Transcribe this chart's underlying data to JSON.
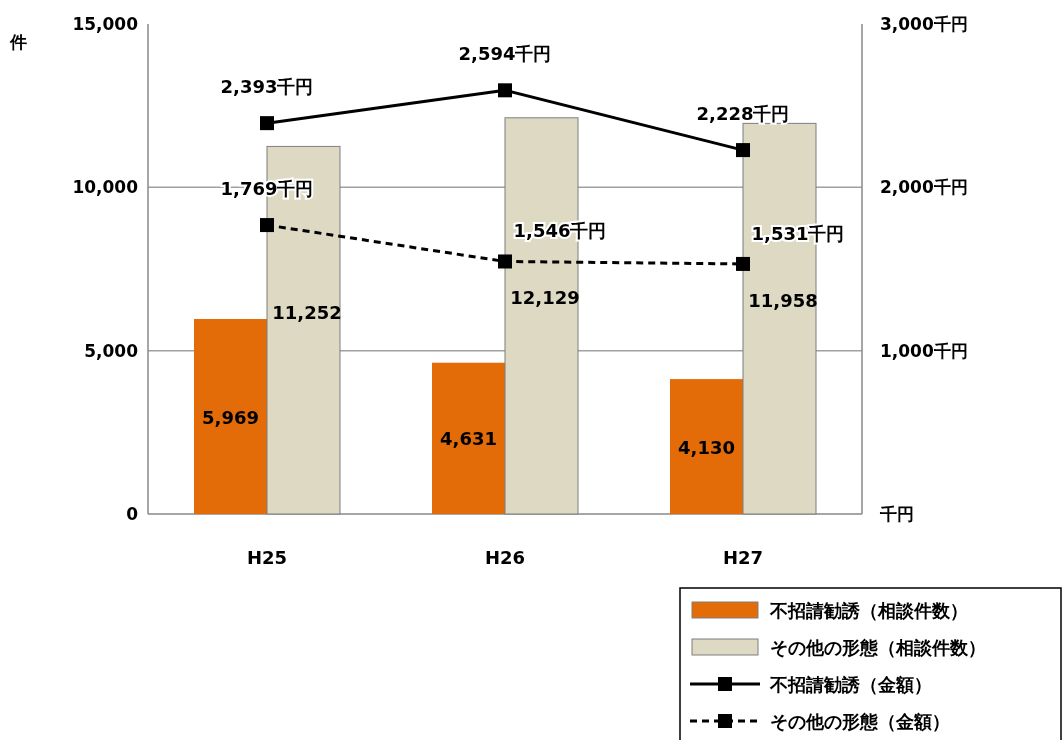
{
  "chart_data": {
    "type": "bar",
    "categories": [
      "H25",
      "H26",
      "H27"
    ],
    "ylabel": "件",
    "ylim": [
      0,
      15000
    ],
    "yticks": [
      0,
      {
        "value": 5000,
        "label": "5,000"
      },
      {
        "value": 10000,
        "label": "10,000"
      },
      {
        "value": 15000,
        "label": "15,000"
      }
    ],
    "y2lim": [
      0,
      3000
    ],
    "y2ticks": [
      {
        "value": 0,
        "label": "千円"
      },
      {
        "value": 1000,
        "label": "1,000千円"
      },
      {
        "value": 2000,
        "label": "2,000千円"
      },
      {
        "value": 3000,
        "label": "3,000千円"
      }
    ],
    "grid": "y",
    "legend": "bottom right",
    "series": [
      {
        "name": "不招請勧誘（相談件数）",
        "color": "#e36c09",
        "values": [
          5969,
          4631,
          4130
        ],
        "value_labels": [
          "5,969",
          "4,631",
          "4,130"
        ]
      },
      {
        "name": "その他の形態（相談件数）",
        "color": "#ddd9c3",
        "values": [
          11252,
          12129,
          11958
        ],
        "value_labels": [
          "11,252",
          "12,129",
          "11,958"
        ]
      },
      {
        "name": "不招請勧誘（金額）",
        "type": "line",
        "axis": "y2",
        "color": "#000000",
        "line_style": "solid",
        "marker": "square",
        "values": [
          2393,
          2594,
          2228
        ],
        "value_labels": [
          "2,393千円",
          "2,594千円",
          "2,228千円"
        ]
      },
      {
        "name": "その他の形態（金額）",
        "type": "line",
        "axis": "y2",
        "color": "#000000",
        "line_style": "dashed",
        "marker": "square",
        "values": [
          1769,
          1546,
          1531
        ],
        "value_labels": [
          "1,769千円",
          "1,546千円",
          "1,531千円"
        ]
      }
    ]
  }
}
